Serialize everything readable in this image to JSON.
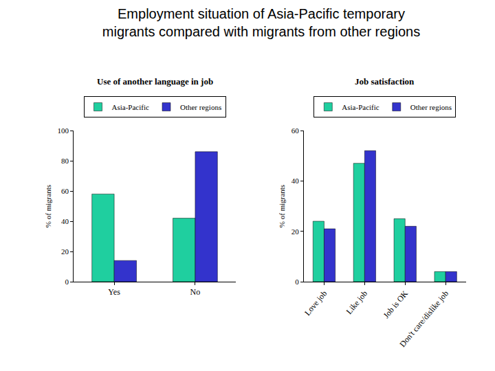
{
  "title": "Employment situation of Asia-Pacific temporary migrants compared with migrants from other regions",
  "chart_data": [
    {
      "type": "bar",
      "title": "Use of another language in job",
      "y_label": "% of migrants",
      "categories": [
        "Yes",
        "No"
      ],
      "series": [
        {
          "name": "Asia-Pacific",
          "color": "#1fcf9f",
          "values": [
            58,
            42
          ]
        },
        {
          "name": "Other regions",
          "color": "#3333cc",
          "values": [
            14,
            86
          ]
        }
      ],
      "ylim": [
        0,
        100
      ],
      "yticks": [
        0,
        20,
        40,
        60,
        80,
        100
      ],
      "grid": false,
      "legend": "top"
    },
    {
      "type": "bar",
      "title": "Job satisfaction",
      "y_label": "% of migrants",
      "categories": [
        "Love job",
        "Like job",
        "Job is OK",
        "Don't care/dislike job"
      ],
      "series": [
        {
          "name": "Asia-Pacific",
          "color": "#1fcf9f",
          "values": [
            24,
            47,
            25,
            4
          ]
        },
        {
          "name": "Other regions",
          "color": "#3333cc",
          "values": [
            21,
            52,
            22,
            4
          ]
        }
      ],
      "ylim": [
        0,
        60
      ],
      "yticks": [
        0,
        20,
        40,
        60
      ],
      "grid": false,
      "legend": "top"
    }
  ]
}
